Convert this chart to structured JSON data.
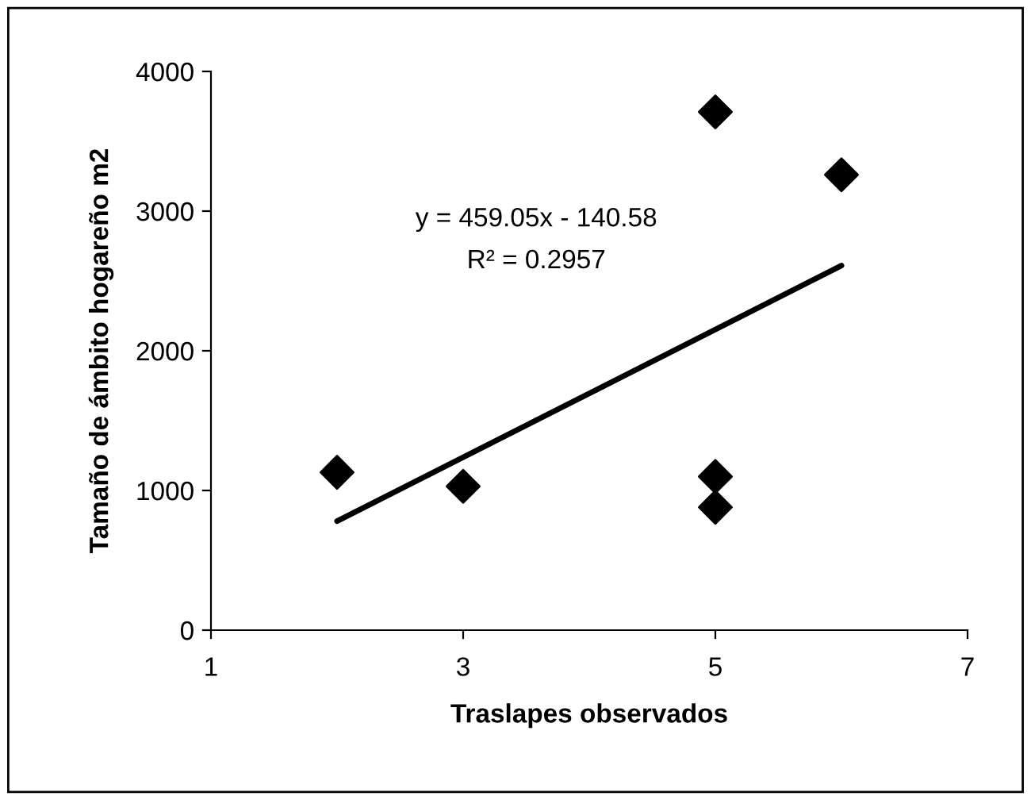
{
  "chart_data": {
    "type": "scatter",
    "xlabel": "Traslapes observados",
    "ylabel": "Tamaño de ámbito hogareño m2",
    "xlim": [
      1,
      7
    ],
    "xticks": [
      1,
      3,
      5,
      7
    ],
    "ylim": [
      0,
      4000
    ],
    "yticks": [
      0,
      1000,
      2000,
      3000,
      4000
    ],
    "grid": false,
    "legend": false,
    "marker": "diamond",
    "series": [
      {
        "color": "#000000",
        "x": [
          2,
          3,
          5,
          5,
          5,
          6
        ],
        "values": [
          1130,
          1030,
          3710,
          1100,
          880,
          3260
        ]
      },
      {
        "type": "line",
        "color": "#000000",
        "line_style": "solid",
        "marker": "none",
        "x": [
          2,
          6
        ],
        "values": [
          780,
          2610
        ]
      }
    ],
    "annotations": [
      "y = 459.05x - 140.58",
      "R² = 0.2957"
    ]
  }
}
